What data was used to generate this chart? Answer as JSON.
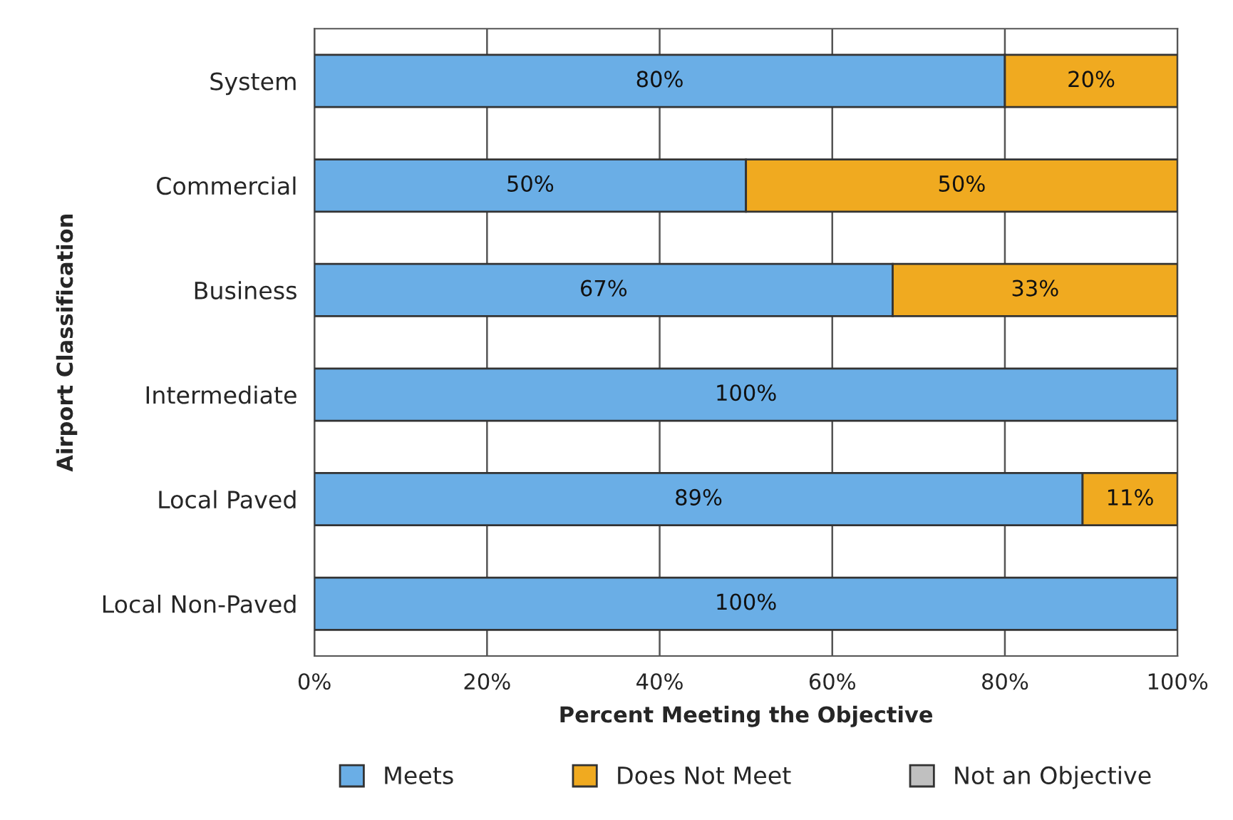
{
  "chart_data": {
    "type": "bar",
    "orientation": "horizontal",
    "stacked": true,
    "xlabel": "Percent Meeting the Objective",
    "ylabel": "Airport Classification",
    "categories": [
      "System",
      "Commercial",
      "Business",
      "Intermediate",
      "Local Paved",
      "Local Non-Paved"
    ],
    "series": [
      {
        "name": "Meets",
        "color": "#6aaee6",
        "values": [
          80,
          50,
          67,
          100,
          89,
          100
        ],
        "value_labels": [
          "80%",
          "50%",
          "67%",
          "100%",
          "89%",
          "100%"
        ]
      },
      {
        "name": "Does Not Meet",
        "color": "#f0aa20",
        "values": [
          20,
          50,
          33,
          0,
          11,
          0
        ],
        "value_labels": [
          "20%",
          "50%",
          "33%",
          null,
          "11%",
          null
        ]
      },
      {
        "name": "Not an Objective",
        "color": "#c0c0c0",
        "values": [
          0,
          0,
          0,
          0,
          0,
          0
        ],
        "value_labels": [
          null,
          null,
          null,
          null,
          null,
          null
        ]
      }
    ],
    "xlim": [
      0,
      100
    ],
    "xticks": [
      {
        "value": 0,
        "label": "0%"
      },
      {
        "value": 20,
        "label": "20%"
      },
      {
        "value": 40,
        "label": "40%"
      },
      {
        "value": 60,
        "label": "60%"
      },
      {
        "value": 80,
        "label": "80%"
      },
      {
        "value": 100,
        "label": "100%"
      }
    ],
    "grid": "x",
    "legend": "bottom"
  }
}
